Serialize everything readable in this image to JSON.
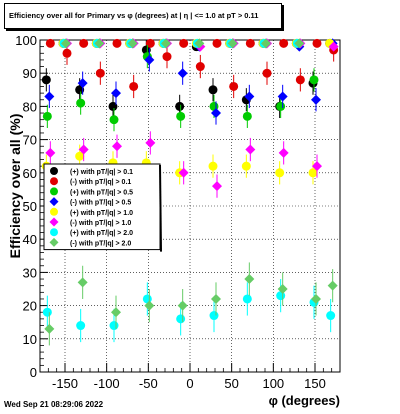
{
  "footer": {
    "timestamp": "Wed Sep 21 08:29:06 2022"
  },
  "chart_data": {
    "type": "scatter",
    "title": "Efficiency over all for Primary vs φ (degrees) at |  η | <= 1.0 at pT > 0.11",
    "xlabel": "φ (degrees)",
    "ylabel": "Efficiency over all (%)",
    "xlim": [
      -180,
      180
    ],
    "ylim": [
      0,
      100
    ],
    "xticks": [
      -150,
      -100,
      -50,
      0,
      50,
      100,
      150
    ],
    "yticks": [
      0,
      10,
      20,
      30,
      40,
      50,
      60,
      70,
      80,
      90,
      100
    ],
    "grid": true,
    "legend_position": "left-middle",
    "x": [
      -170,
      -150,
      -130,
      -110,
      -90,
      -70,
      -50,
      -30,
      -10,
      10,
      30,
      50,
      70,
      90,
      110,
      130,
      150,
      170
    ],
    "series": [
      {
        "name": "(+) with pT/|q| > 0.1",
        "color": "#000000",
        "marker": "circle",
        "values": [
          88,
          99,
          85,
          99,
          80,
          99,
          97,
          99,
          80,
          98,
          85,
          99,
          82,
          99,
          80,
          99,
          87,
          99
        ]
      },
      {
        "name": "(-) with pT/|q| > 0.1",
        "color": "#e00000",
        "marker": "circle",
        "values": [
          99,
          96,
          99,
          90,
          99,
          86,
          99,
          95,
          99,
          92,
          99,
          86,
          99,
          90,
          99,
          88,
          99,
          97
        ]
      },
      {
        "name": "(+) with pT/|q| > 0.5",
        "color": "#00cc00",
        "marker": "circle",
        "values": [
          77,
          99,
          81,
          99,
          76,
          99,
          95,
          99,
          77,
          99,
          80,
          99,
          77,
          99,
          80,
          99,
          88,
          99
        ]
      },
      {
        "name": "(-) with pT/|q| > 0.5",
        "color": "#0000ff",
        "marker": "diamond",
        "values": [
          83,
          99,
          87,
          99,
          84,
          99,
          94,
          99,
          90,
          98,
          78,
          99,
          83,
          99,
          83,
          98,
          82,
          99
        ]
      },
      {
        "name": "(+) with pT/|q| > 1.0",
        "color": "#ffff00",
        "marker": "circle",
        "values": [
          62,
          99,
          65,
          99,
          63,
          99,
          63,
          99,
          60,
          99,
          62,
          99,
          62,
          99,
          60,
          99,
          60,
          99
        ]
      },
      {
        "name": "(-) with pT/|q| > 1.0",
        "color": "#ff00ff",
        "marker": "diamond",
        "values": [
          66,
          99,
          67,
          99,
          68,
          99,
          69,
          99,
          60,
          98,
          56,
          99,
          67,
          99,
          66,
          99,
          62,
          98
        ]
      },
      {
        "name": "(+) with pT/|q| > 2.0",
        "color": "#00ffff",
        "marker": "circle",
        "values": [
          18,
          99,
          14,
          99,
          14,
          99,
          22,
          99,
          16,
          99,
          17,
          99,
          22,
          99,
          23,
          99,
          21,
          17
        ]
      },
      {
        "name": "(-) with pT/|q| > 2.0",
        "color": "#66cc66",
        "marker": "diamond",
        "values": [
          13,
          99,
          27,
          99,
          18,
          99,
          20,
          99,
          20,
          99,
          22,
          99,
          28,
          99,
          25,
          99,
          22,
          26
        ]
      }
    ]
  }
}
